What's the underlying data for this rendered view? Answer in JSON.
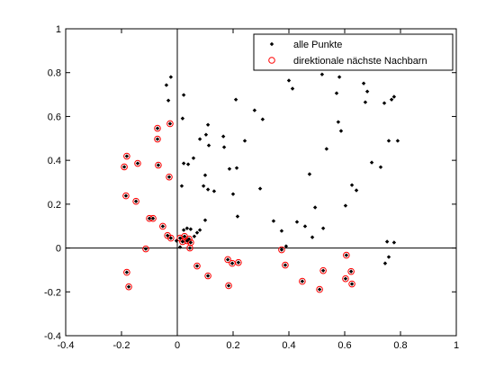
{
  "chart_data": {
    "type": "scatter",
    "xlim": [
      -0.4,
      1
    ],
    "ylim": [
      -0.4,
      1
    ],
    "xticks": [
      -0.4,
      -0.2,
      0,
      0.2,
      0.4,
      0.6,
      0.8,
      1
    ],
    "yticks": [
      -0.4,
      -0.2,
      0,
      0.2,
      0.4,
      0.6,
      0.8,
      1
    ],
    "zero_lines": true,
    "legend": "top-right",
    "series": [
      {
        "name": "alle Punkte",
        "color": "#000000",
        "marker": "dot",
        "x": [
          -0.023,
          -0.039,
          -0.032,
          0.023,
          0.019,
          0.11,
          0.103,
          0.081,
          0.113,
          0.165,
          0.168,
          0.242,
          0.21,
          0.277,
          0.306,
          0.187,
          0.213,
          0.058,
          0.039,
          0.023,
          0.016,
          0.1,
          0.094,
          0.11,
          0.132,
          0.2,
          0.216,
          0.297,
          0.4,
          0.413,
          0.519,
          0.581,
          0.571,
          0.668,
          0.681,
          0.674,
          0.768,
          0.777,
          0.742,
          0.577,
          0.587,
          0.474,
          0.535,
          0.494,
          0.626,
          0.642,
          0.603,
          0.697,
          0.729,
          0.758,
          0.79,
          0.345,
          0.374,
          0.39,
          0.429,
          0.458,
          0.484,
          0.523,
          0.752,
          0.777,
          0.758,
          0.745,
          0.023,
          0.035,
          0.048,
          0.071,
          0.081,
          0.061,
          0.1,
          -0.003,
          0.01,
          -0.181,
          -0.19,
          -0.142,
          -0.184,
          -0.148,
          -0.1,
          -0.087,
          -0.071,
          -0.071,
          -0.026,
          -0.068,
          -0.029,
          -0.052,
          -0.035,
          -0.023,
          -0.113,
          -0.181,
          -0.174,
          0.01,
          0.026,
          0.042,
          0.019,
          0.035,
          0.045,
          0.048,
          0.071,
          0.11,
          0.181,
          0.197,
          0.219,
          0.184,
          0.374,
          0.387,
          0.523,
          0.448,
          0.51,
          0.606,
          0.623,
          0.603,
          0.626
        ],
        "y": [
          0.78,
          0.743,
          0.673,
          0.698,
          0.591,
          0.562,
          0.517,
          0.497,
          0.468,
          0.509,
          0.46,
          0.489,
          0.677,
          0.628,
          0.587,
          0.361,
          0.365,
          0.41,
          0.382,
          0.386,
          0.283,
          0.332,
          0.283,
          0.267,
          0.259,
          0.246,
          0.144,
          0.271,
          0.764,
          0.727,
          0.792,
          0.78,
          0.706,
          0.751,
          0.714,
          0.665,
          0.677,
          0.69,
          0.661,
          0.575,
          0.534,
          0.337,
          0.452,
          0.185,
          0.287,
          0.263,
          0.193,
          0.39,
          0.369,
          0.489,
          0.489,
          0.123,
          0.078,
          0.008,
          0.119,
          0.099,
          0.049,
          0.09,
          0.029,
          0.025,
          -0.041,
          -0.07,
          0.082,
          0.09,
          0.086,
          0.07,
          0.082,
          0.053,
          0.127,
          0.033,
          0.004,
          0.419,
          0.37,
          0.386,
          0.238,
          0.213,
          0.135,
          0.135,
          0.497,
          0.546,
          0.567,
          0.378,
          0.324,
          0.099,
          0.057,
          0.045,
          -0.004,
          -0.111,
          -0.177,
          0.045,
          0.053,
          0.041,
          0.029,
          0.033,
          0,
          0.025,
          -0.082,
          -0.127,
          -0.053,
          -0.07,
          -0.066,
          -0.172,
          -0.008,
          -0.078,
          -0.103,
          -0.152,
          -0.189,
          -0.033,
          -0.107,
          -0.14,
          -0.164
        ]
      },
      {
        "name": "direktionale nächste Nachbarn",
        "color": "#ff0000",
        "marker": "circle",
        "x": [
          -0.181,
          -0.19,
          -0.142,
          -0.184,
          -0.148,
          -0.1,
          -0.087,
          -0.071,
          -0.071,
          -0.026,
          -0.068,
          -0.029,
          -0.052,
          -0.035,
          -0.023,
          -0.113,
          -0.181,
          -0.174,
          0.01,
          0.026,
          0.042,
          0.019,
          0.035,
          0.045,
          0.048,
          0.071,
          0.11,
          0.181,
          0.197,
          0.219,
          0.184,
          0.374,
          0.387,
          0.523,
          0.448,
          0.51,
          0.606,
          0.623,
          0.603,
          0.626
        ],
        "y": [
          0.419,
          0.37,
          0.386,
          0.238,
          0.213,
          0.135,
          0.135,
          0.497,
          0.546,
          0.567,
          0.378,
          0.324,
          0.099,
          0.057,
          0.045,
          -0.004,
          -0.111,
          -0.177,
          0.045,
          0.053,
          0.041,
          0.029,
          0.033,
          0,
          0.025,
          -0.082,
          -0.127,
          -0.053,
          -0.07,
          -0.066,
          -0.172,
          -0.008,
          -0.078,
          -0.103,
          -0.152,
          -0.189,
          -0.033,
          -0.107,
          -0.14,
          -0.164
        ]
      }
    ]
  }
}
